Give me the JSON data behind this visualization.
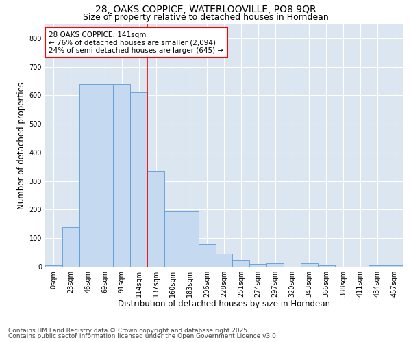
{
  "title_line1": "28, OAKS COPPICE, WATERLOOVILLE, PO8 9QR",
  "title_line2": "Size of property relative to detached houses in Horndean",
  "xlabel": "Distribution of detached houses by size in Horndean",
  "ylabel": "Number of detached properties",
  "bar_labels": [
    "0sqm",
    "23sqm",
    "46sqm",
    "69sqm",
    "91sqm",
    "114sqm",
    "137sqm",
    "160sqm",
    "183sqm",
    "206sqm",
    "228sqm",
    "251sqm",
    "274sqm",
    "297sqm",
    "320sqm",
    "343sqm",
    "366sqm",
    "388sqm",
    "411sqm",
    "434sqm",
    "457sqm"
  ],
  "bar_values": [
    5,
    140,
    640,
    640,
    640,
    610,
    335,
    195,
    195,
    80,
    45,
    25,
    10,
    13,
    0,
    13,
    5,
    0,
    0,
    5,
    5
  ],
  "bar_color": "#c5d9f1",
  "bar_edge_color": "#5b9bd5",
  "vline_x_index": 6,
  "annotation_text": "28 OAKS COPPICE: 141sqm\n← 76% of detached houses are smaller (2,094)\n24% of semi-detached houses are larger (645) →",
  "annotation_box_color": "#ffffff",
  "annotation_box_edge": "#ff0000",
  "vline_color": "#ff0000",
  "ylim": [
    0,
    850
  ],
  "yticks": [
    0,
    100,
    200,
    300,
    400,
    500,
    600,
    700,
    800
  ],
  "background_color": "#dce6f1",
  "footer_line1": "Contains HM Land Registry data © Crown copyright and database right 2025.",
  "footer_line2": "Contains public sector information licensed under the Open Government Licence v3.0.",
  "title_fontsize": 10,
  "subtitle_fontsize": 9,
  "tick_fontsize": 7,
  "xlabel_fontsize": 8.5,
  "ylabel_fontsize": 8.5,
  "annotation_fontsize": 7.5,
  "footer_fontsize": 6.5
}
